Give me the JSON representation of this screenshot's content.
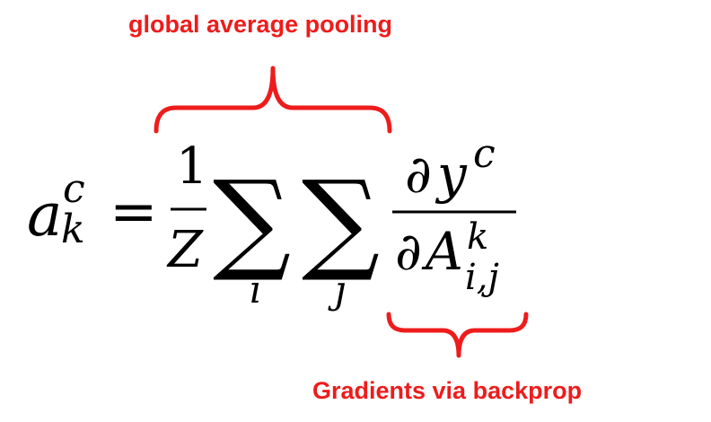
{
  "annotations": {
    "top_label": "global average pooling",
    "bottom_label": "Gradients via backprop",
    "color": "#ee1c1c"
  },
  "formula": {
    "lhs_symbol": "a",
    "lhs_superscript": "c",
    "lhs_subscript": "k",
    "equals": "=",
    "fraction_numerator": "1",
    "fraction_denominator": "Z",
    "sum_symbol": "∑",
    "sum1_index": "i",
    "sum2_index": "j",
    "partial": "∂",
    "numerator_var": "y",
    "numerator_superscript": "c",
    "denominator_var": "A",
    "denominator_superscript": "k",
    "denominator_subscript": "i,j"
  }
}
